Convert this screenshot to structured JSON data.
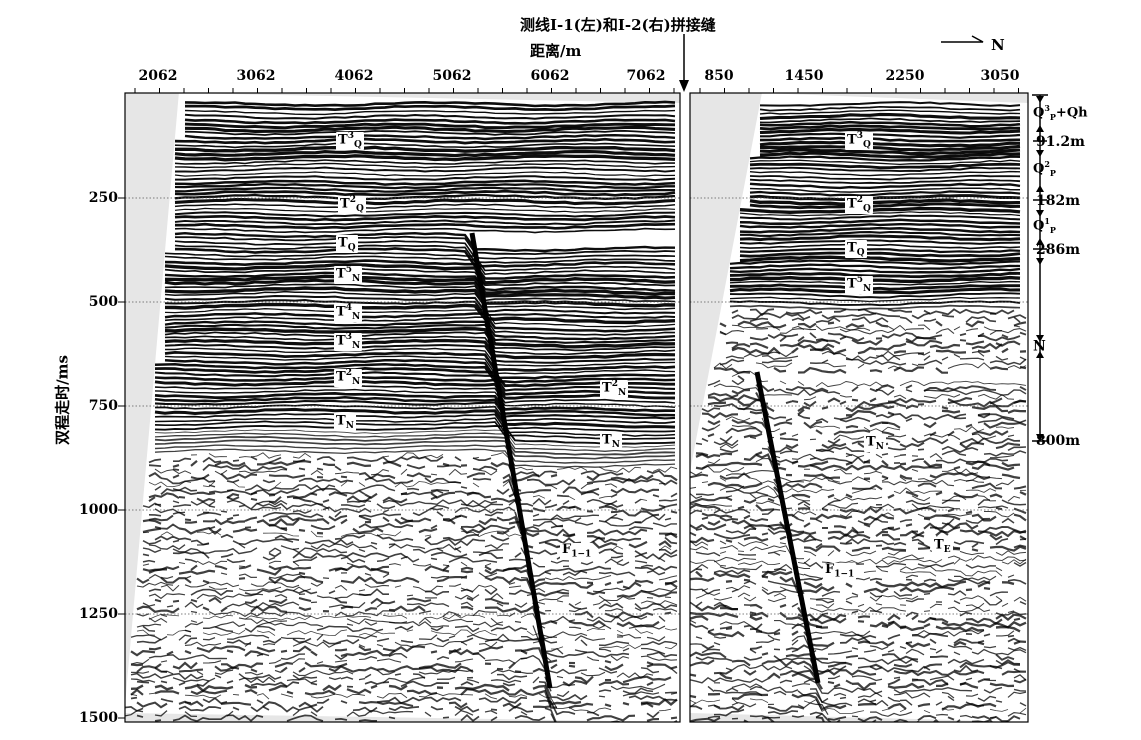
{
  "title": "测线I-1(左)和I-2(右)拼接缝",
  "x_axis_label": "距离/m",
  "y_axis_label": "双程走时/ms",
  "north_label": "N",
  "left_panel": {
    "x_ticks": [
      "2062",
      "3062",
      "4062",
      "5062",
      "6062",
      "7062"
    ],
    "horizons": [
      {
        "base": "T",
        "sup": "3",
        "sub": "Q"
      },
      {
        "base": "T",
        "sup": "2",
        "sub": "Q"
      },
      {
        "base": "T",
        "sup": "",
        "sub": "Q"
      },
      {
        "base": "T",
        "sup": "5",
        "sub": "N"
      },
      {
        "base": "T",
        "sup": "4",
        "sub": "N"
      },
      {
        "base": "T",
        "sup": "3",
        "sub": "N"
      },
      {
        "base": "T",
        "sup": "2",
        "sub": "N"
      },
      {
        "base": "T",
        "sup": "",
        "sub": "N"
      },
      {
        "base": "T",
        "sup": "2",
        "sub": "N"
      },
      {
        "base": "T",
        "sup": "",
        "sub": "N"
      }
    ],
    "fault_label": {
      "base": "F",
      "sub": "1−1"
    }
  },
  "right_panel": {
    "x_ticks": [
      "850",
      "1450",
      "2250",
      "3050"
    ],
    "horizons": [
      {
        "base": "T",
        "sup": "3",
        "sub": "Q"
      },
      {
        "base": "T",
        "sup": "2",
        "sub": "Q"
      },
      {
        "base": "T",
        "sup": "",
        "sub": "Q"
      },
      {
        "base": "T",
        "sup": "5",
        "sub": "N"
      },
      {
        "base": "T",
        "sup": "",
        "sub": "N"
      },
      {
        "base": "T",
        "sup": "",
        "sub": "E"
      }
    ],
    "fault_label": {
      "base": "F",
      "sub": "1−1"
    }
  },
  "y_ticks": [
    "250",
    "500",
    "750",
    "1000",
    "1250",
    "1500"
  ],
  "stratigraphy": [
    {
      "base": "Q",
      "sup": "3",
      "sub": "P",
      "suffix": "+Qh"
    },
    {
      "base": "Q",
      "sup": "2",
      "sub": "P",
      "suffix": ""
    },
    {
      "base": "Q",
      "sup": "1",
      "sub": "P",
      "suffix": ""
    },
    {
      "base": "N",
      "sup": "",
      "sub": "",
      "suffix": ""
    }
  ],
  "depths": [
    "91.2m",
    "182m",
    "286m",
    "800m"
  ],
  "colors": {
    "background": "#e6e6e6",
    "reflector": "#000000",
    "label_bg": "#ffffff"
  }
}
